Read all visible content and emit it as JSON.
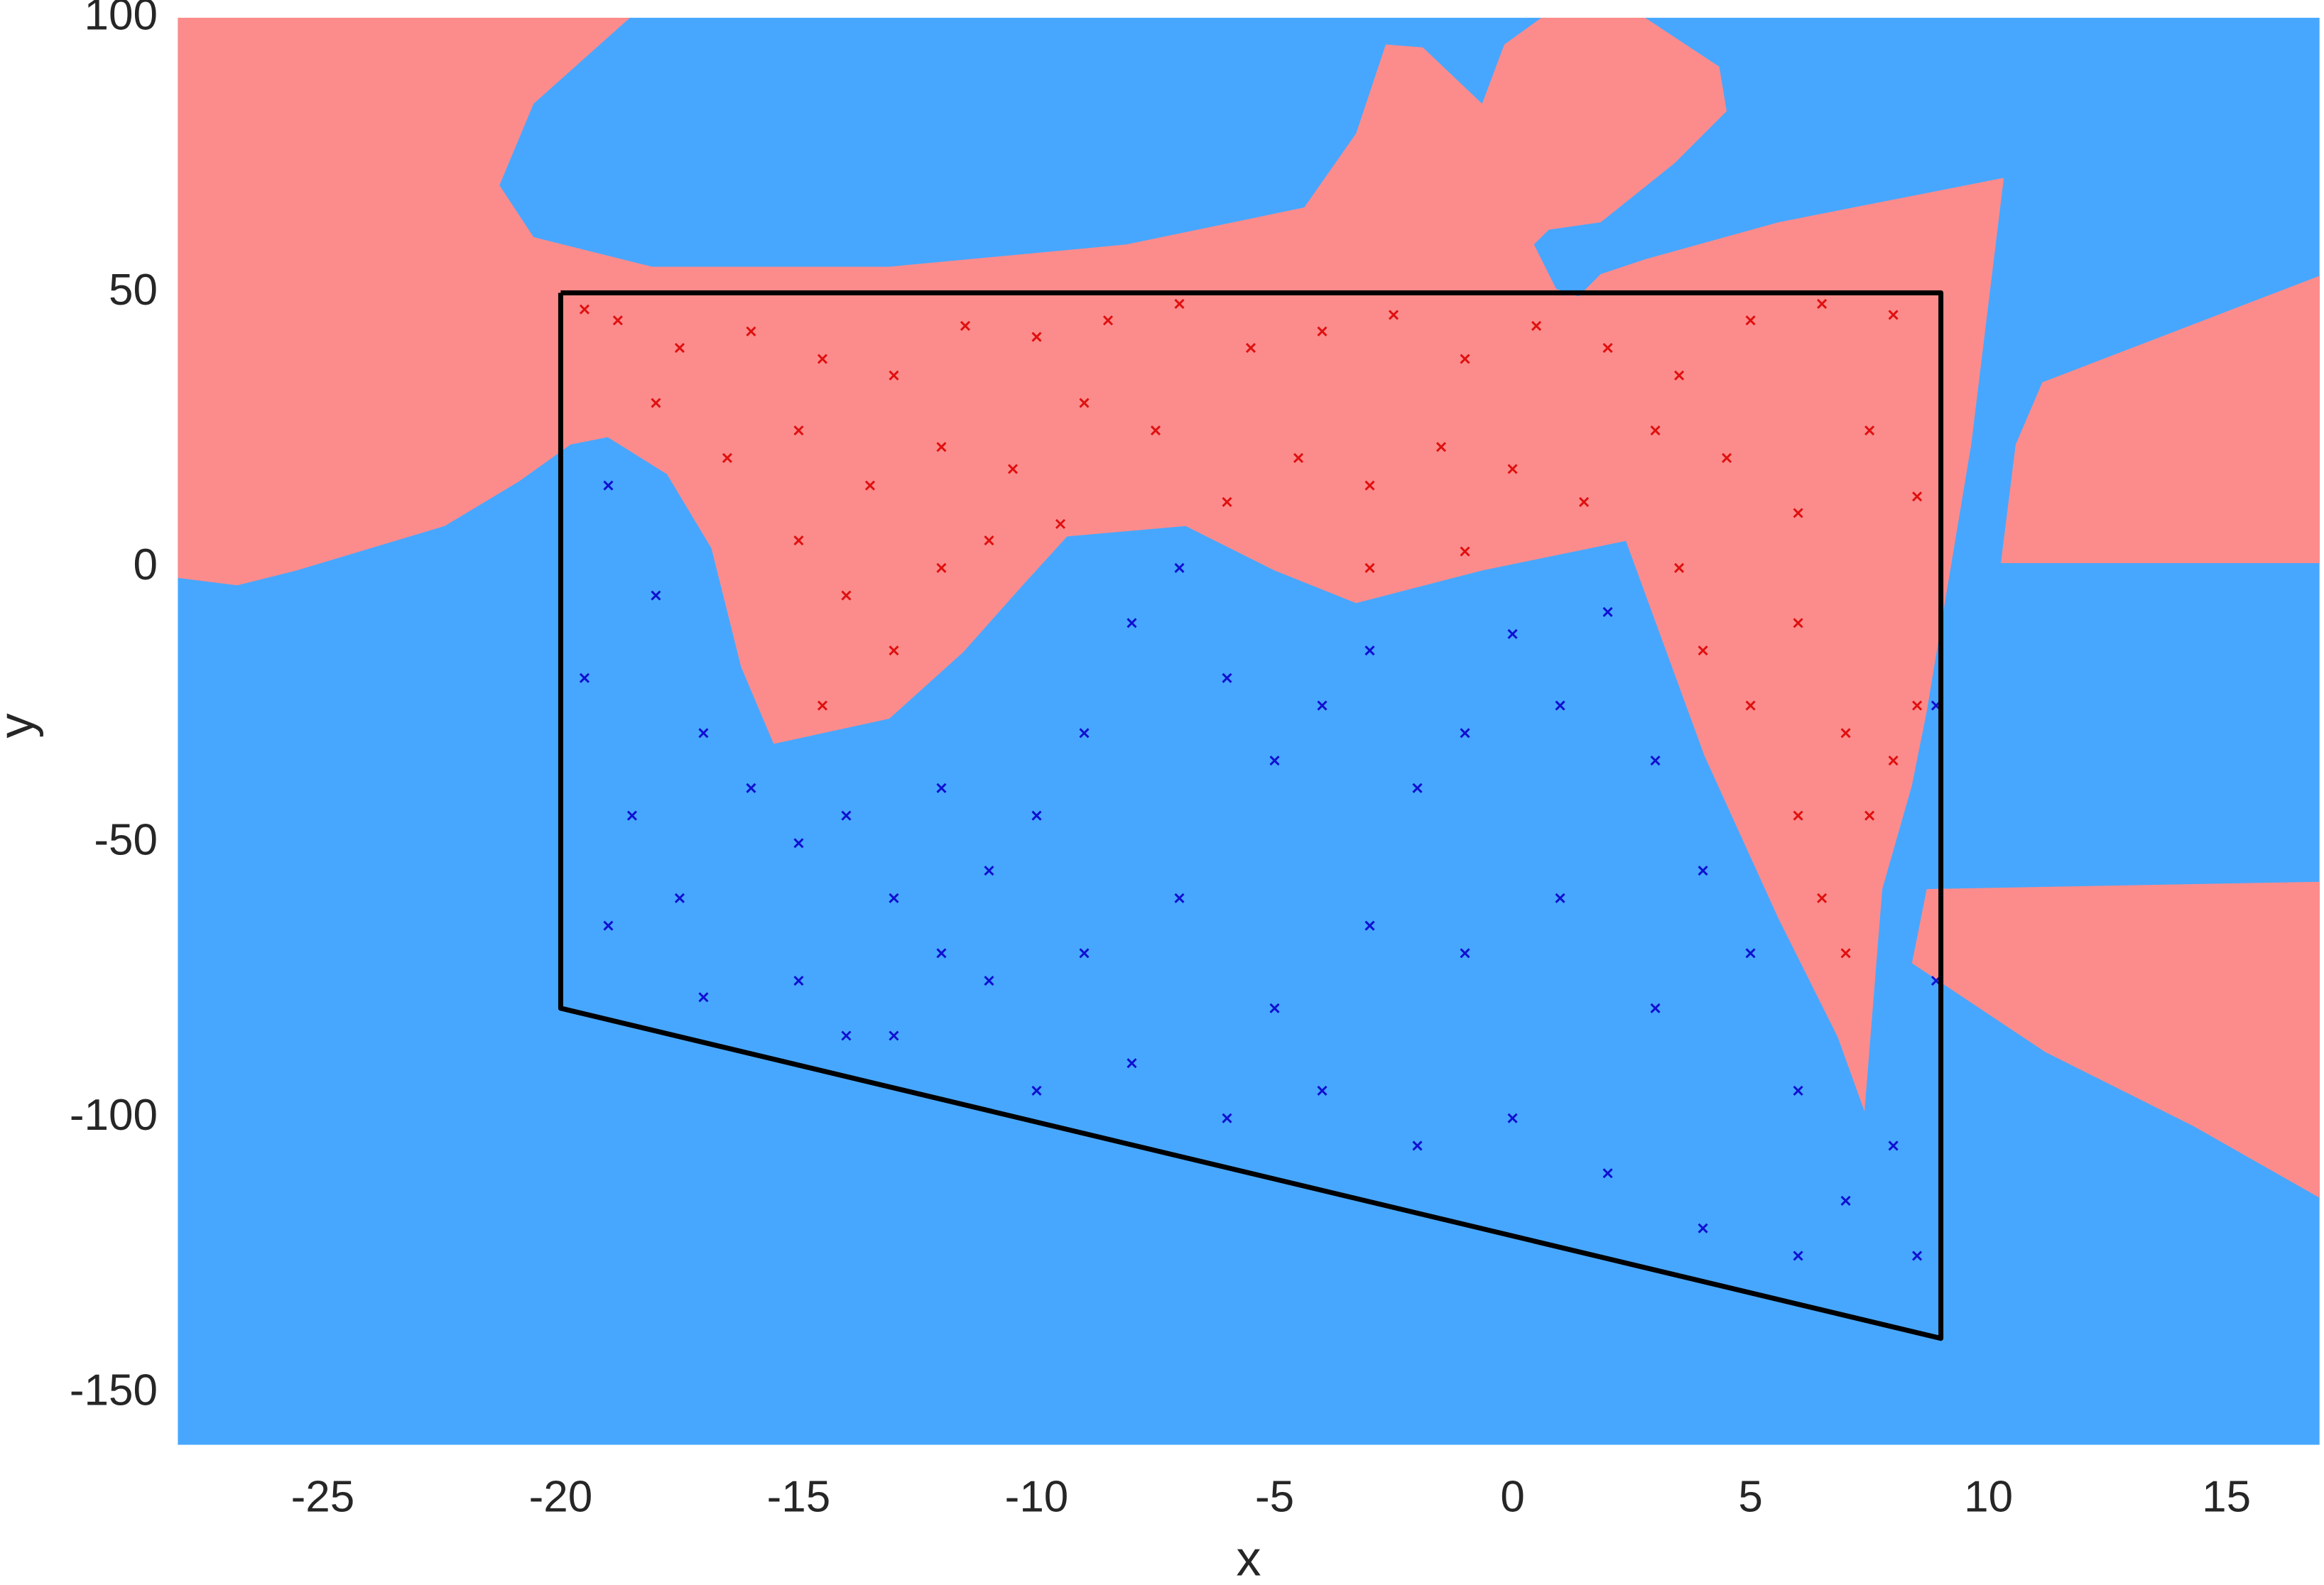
{
  "chart_data": {
    "type": "scatter",
    "xlabel": "x",
    "ylabel": "y",
    "xlim": [
      -28.05,
      16.96
    ],
    "ylim": [
      -159.4,
      100
    ],
    "xticks": [
      -25,
      -20,
      -15,
      -10,
      -5,
      0,
      5,
      10,
      15
    ],
    "yticks": [
      -150,
      -100,
      -50,
      0,
      50,
      100
    ],
    "series": [
      {
        "style": "points",
        "marker": "x",
        "color": "#e01010",
        "x": [
          -19.5,
          -18.8,
          -17.5,
          -16,
          -14.5,
          -13,
          -11.5,
          -10,
          -8.5,
          -7,
          -5.5,
          -4,
          -2.5,
          -1,
          0.5,
          2,
          3.5,
          5,
          6.5,
          8,
          -18,
          -16.5,
          -15,
          -13.5,
          -12,
          -10.5,
          -9,
          -7.5,
          -6,
          -4.5,
          -3,
          -1.5,
          0,
          1.5,
          3,
          4.5,
          6,
          7.5,
          8.5,
          -15,
          -14,
          -13,
          -12,
          -11,
          -9.5,
          -14.5,
          -3,
          -1,
          3.5,
          4,
          5,
          6,
          7,
          7.5,
          6.5,
          7,
          8,
          6,
          8.5
        ],
        "y": [
          47,
          45,
          40,
          43,
          38,
          35,
          44,
          42,
          45,
          48,
          40,
          43,
          46,
          38,
          44,
          40,
          35,
          45,
          48,
          46,
          30,
          20,
          25,
          15,
          22,
          18,
          30,
          25,
          12,
          20,
          15,
          22,
          18,
          12,
          25,
          20,
          10,
          25,
          13,
          5,
          -5,
          -15,
          0,
          5,
          8,
          -25,
          0,
          3,
          0,
          -15,
          -25,
          -10,
          -30,
          -45,
          -60,
          -70,
          -35,
          -45,
          -25
        ]
      },
      {
        "style": "points",
        "marker": "x",
        "color": "#1010d0",
        "x": [
          -19,
          -18,
          -19.5,
          -17,
          -18.5,
          -16,
          -19,
          -17.5,
          -15,
          -14,
          -13,
          -12,
          -11,
          -10,
          -9,
          -8,
          -7,
          -6,
          -5,
          -4,
          -3,
          -2,
          -1,
          0,
          1,
          2,
          3,
          4,
          5,
          3,
          1,
          -1,
          -3,
          -5,
          -7,
          -9,
          -11,
          -13,
          -15,
          -17,
          -10,
          -8,
          -6,
          -4,
          -2,
          0,
          2,
          4,
          6,
          7,
          8,
          8.5,
          8.9,
          8.9,
          6,
          -12,
          -14
        ],
        "y": [
          15,
          -5,
          -20,
          -30,
          -45,
          -40,
          -65,
          -60,
          -50,
          -45,
          -60,
          -40,
          -55,
          -45,
          -30,
          -10,
          0,
          -20,
          -35,
          -25,
          -15,
          -40,
          -30,
          -12,
          -25,
          -8,
          -35,
          -55,
          -70,
          -80,
          -60,
          -70,
          -65,
          -80,
          -60,
          -70,
          -75,
          -85,
          -75,
          -78,
          -95,
          -90,
          -100,
          -95,
          -105,
          -100,
          -110,
          -120,
          -125,
          -115,
          -105,
          -125,
          -75,
          -25,
          -95,
          -70,
          -85
        ]
      },
      {
        "style": "line",
        "color": "#000000",
        "x": [
          -20,
          9,
          9,
          -20,
          -20
        ],
        "y": [
          50,
          50,
          -140,
          -80,
          50
        ]
      }
    ]
  }
}
